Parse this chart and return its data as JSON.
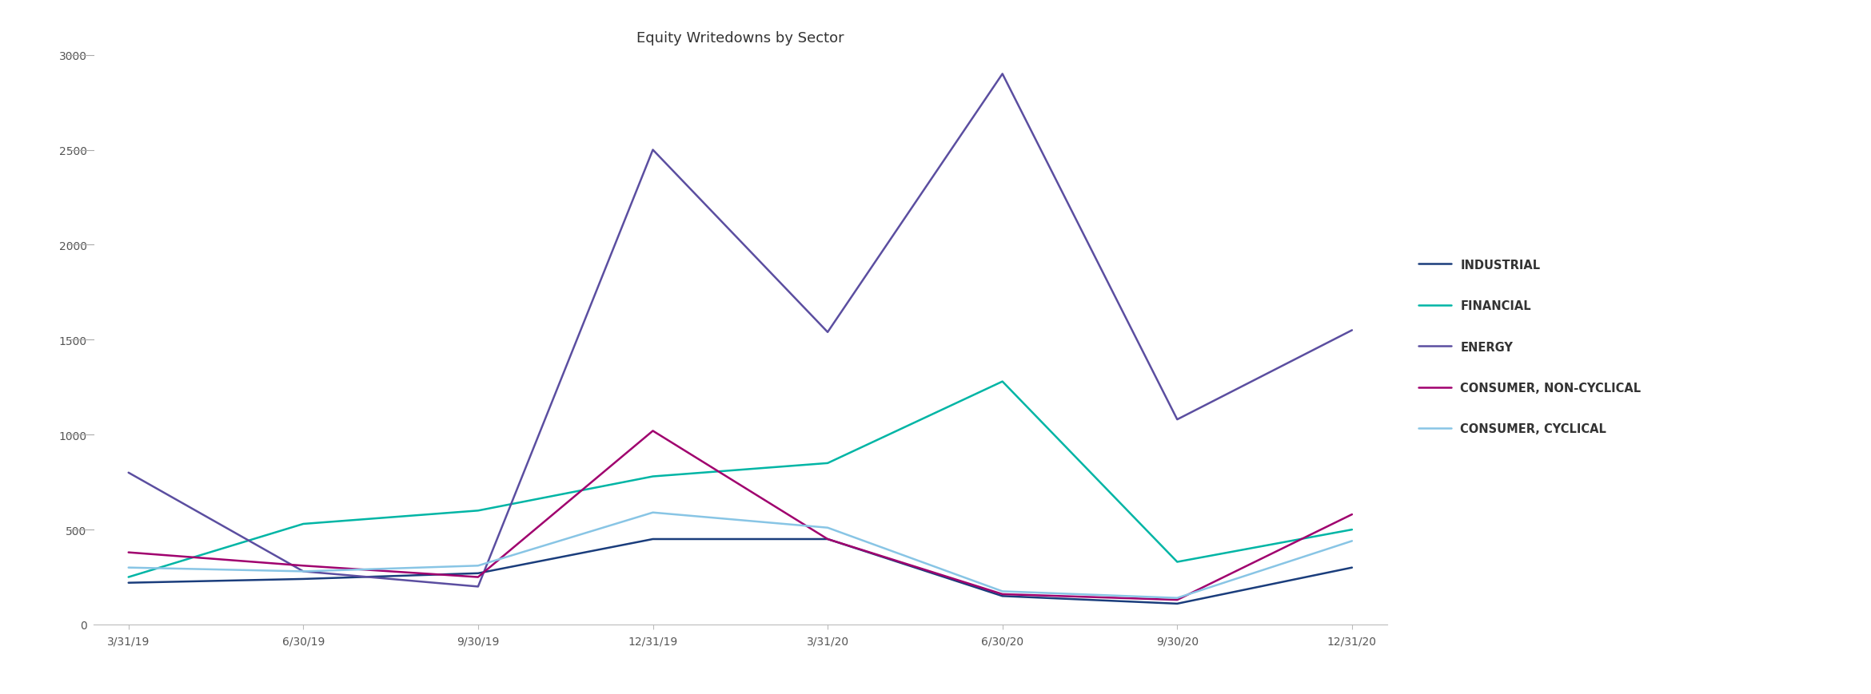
{
  "title": "Equity Writedowns by Sector",
  "x_labels": [
    "3/31/19",
    "6/30/19",
    "9/30/19",
    "12/31/19",
    "3/31/20",
    "6/30/20",
    "9/30/20",
    "12/31/20"
  ],
  "series": [
    {
      "name": "INDUSTRIAL",
      "color": "#1a3d7c",
      "values": [
        220,
        240,
        270,
        450,
        450,
        150,
        110,
        300
      ]
    },
    {
      "name": "FINANCIAL",
      "color": "#00b5a5",
      "values": [
        250,
        530,
        600,
        780,
        850,
        1280,
        330,
        500
      ]
    },
    {
      "name": "ENERGY",
      "color": "#5b4ea0",
      "values": [
        800,
        280,
        200,
        2500,
        1540,
        2900,
        1080,
        1550
      ]
    },
    {
      "name": "CONSUMER, NON-CYCLICAL",
      "color": "#a0006e",
      "values": [
        380,
        310,
        250,
        1020,
        450,
        160,
        130,
        580
      ]
    },
    {
      "name": "CONSUMER, CYCLICAL",
      "color": "#88c5e5",
      "values": [
        300,
        280,
        310,
        590,
        510,
        175,
        140,
        440
      ]
    }
  ],
  "ylim": [
    0,
    3000
  ],
  "yticks": [
    0,
    500,
    1000,
    1500,
    2000,
    2500,
    3000
  ],
  "background_color": "#ffffff",
  "title_fontsize": 13,
  "legend_fontsize": 10.5,
  "tick_fontsize": 10,
  "linewidth": 1.8
}
